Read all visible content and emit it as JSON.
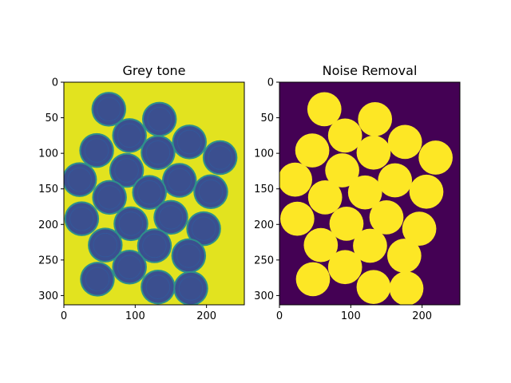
{
  "chart_data": [
    {
      "type": "heatmap",
      "title": "Grey tone",
      "xlabel": "",
      "ylabel": "",
      "xlim": [
        0,
        253
      ],
      "ylim": [
        313,
        0
      ],
      "xticks": [
        0,
        100,
        200
      ],
      "yticks": [
        0,
        50,
        100,
        150,
        200,
        250,
        300
      ],
      "colormap": "viridis",
      "colors": {
        "background": "#e2e31f",
        "coin_fill": "#3b4f8f",
        "coin_rim": "#2e8f8b"
      },
      "coins": [
        {
          "x": 63,
          "y": 38
        },
        {
          "x": 134,
          "y": 52
        },
        {
          "x": 92,
          "y": 75
        },
        {
          "x": 176,
          "y": 84
        },
        {
          "x": 46,
          "y": 96
        },
        {
          "x": 132,
          "y": 99
        },
        {
          "x": 219,
          "y": 106
        },
        {
          "x": 88,
          "y": 124
        },
        {
          "x": 22,
          "y": 137
        },
        {
          "x": 162,
          "y": 138
        },
        {
          "x": 120,
          "y": 155
        },
        {
          "x": 64,
          "y": 162
        },
        {
          "x": 206,
          "y": 154
        },
        {
          "x": 25,
          "y": 192
        },
        {
          "x": 94,
          "y": 199
        },
        {
          "x": 150,
          "y": 190
        },
        {
          "x": 196,
          "y": 206
        },
        {
          "x": 58,
          "y": 229
        },
        {
          "x": 127,
          "y": 230
        },
        {
          "x": 175,
          "y": 244
        },
        {
          "x": 92,
          "y": 260
        },
        {
          "x": 47,
          "y": 277
        },
        {
          "x": 132,
          "y": 288
        },
        {
          "x": 178,
          "y": 290
        }
      ],
      "coin_radius": 23
    },
    {
      "type": "heatmap",
      "title": "Noise Removal",
      "xlabel": "",
      "ylabel": "",
      "xlim": [
        0,
        253
      ],
      "ylim": [
        313,
        0
      ],
      "xticks": [
        0,
        100,
        200
      ],
      "yticks": [
        0,
        50,
        100,
        150,
        200,
        250,
        300
      ],
      "colormap": "viridis",
      "colors": {
        "background": "#440154",
        "coin_fill": "#fde725"
      },
      "coins": "same as Grey tone"
    }
  ]
}
